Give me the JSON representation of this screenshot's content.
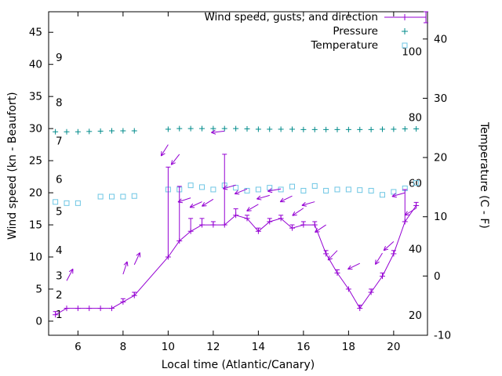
{
  "legend": {
    "wind": "Wind speed, gusts, and direction",
    "pressure": "Pressure",
    "temperature": "Temperature"
  },
  "axes": {
    "x_label": "Local time (Atlantic/Canary)",
    "y_left_label": "Wind speed (kn - Beaufort)",
    "y_right_label": "Temperature (C - F)",
    "x_ticks": [
      6,
      8,
      10,
      12,
      14,
      16,
      18,
      20
    ],
    "y_left_ticks": [
      0,
      5,
      10,
      15,
      20,
      25,
      30,
      35,
      40,
      45
    ],
    "y_right_ticks": [
      -10,
      0,
      10,
      20,
      30,
      40
    ],
    "beaufort_labels": [
      {
        "label": "1",
        "kn": 1
      },
      {
        "label": "2",
        "kn": 4
      },
      {
        "label": "3",
        "kn": 7
      },
      {
        "label": "4",
        "kn": 11
      },
      {
        "label": "5",
        "kn": 17
      },
      {
        "label": "6",
        "kn": 22
      },
      {
        "label": "7",
        "kn": 28
      },
      {
        "label": "8",
        "kn": 34
      },
      {
        "label": "9",
        "kn": 41
      }
    ],
    "fahrenheit_labels": [
      {
        "label": "20",
        "f": 20
      },
      {
        "label": "40",
        "f": 40
      },
      {
        "label": "60",
        "f": 60
      },
      {
        "label": "80",
        "f": 80
      },
      {
        "label": "100",
        "f": 100
      }
    ]
  },
  "colors": {
    "wind": "#9400d3",
    "pressure": "#008b8b",
    "temperature": "#6ec6e4",
    "axis": "#000000"
  },
  "chart_data": {
    "type": "line",
    "title": "",
    "xlabel": "Local time (Atlantic/Canary)",
    "ylabel_left": "Wind speed (kn - Beaufort)",
    "ylabel_right": "Temperature (C - F)",
    "xlim": [
      4.7,
      21.5
    ],
    "ylim_left_kn": [
      -2.2,
      48.2
    ],
    "ylim_right_C": [
      -10,
      44.6
    ],
    "x": [
      5,
      5.5,
      6,
      6.5,
      7,
      7.5,
      8,
      8.5,
      9,
      9.5,
      10,
      10.5,
      11,
      11.5,
      12,
      12.5,
      13,
      13.5,
      14,
      14.5,
      15,
      15.5,
      16,
      16.5,
      17,
      17.5,
      18,
      18.5,
      19,
      19.5,
      20,
      20.5,
      21
    ],
    "series": [
      {
        "name": "wind_speed_kn",
        "values": [
          1,
          2,
          2,
          2,
          2,
          2,
          3,
          4,
          null,
          null,
          10,
          12.5,
          14,
          15,
          15,
          15,
          16.5,
          16,
          14,
          15.5,
          16,
          14.5,
          15,
          15,
          10.5,
          7.5,
          5,
          2,
          4.5,
          7,
          10.5,
          15.5,
          18
        ]
      },
      {
        "name": "gusts_kn",
        "values": [
          1.5,
          2,
          2,
          2,
          2,
          2,
          3.5,
          4.5,
          null,
          null,
          24,
          21,
          16,
          16,
          15.5,
          26,
          17.5,
          16.5,
          14.5,
          16,
          16.5,
          15,
          15.5,
          15.5,
          11,
          8,
          5,
          2.5,
          5,
          7.5,
          11,
          20.5,
          18.5
        ]
      },
      {
        "name": "pressure_inHg",
        "values": [
          29.5,
          29.5,
          29.5,
          29.55,
          29.6,
          29.65,
          29.65,
          29.65,
          null,
          null,
          29.9,
          30,
          30,
          30,
          30,
          30,
          30,
          29.95,
          29.9,
          29.9,
          29.9,
          29.9,
          29.85,
          29.85,
          29.85,
          29.85,
          29.85,
          29.85,
          29.85,
          29.9,
          29.9,
          29.95,
          29.95
        ]
      },
      {
        "name": "temperature_C",
        "values": [
          12.5,
          12.3,
          12.3,
          null,
          13.4,
          13.4,
          13.4,
          13.5,
          null,
          null,
          14.6,
          14.6,
          15.3,
          15,
          14.6,
          15.3,
          14.9,
          14.4,
          14.6,
          14.9,
          14.6,
          15.1,
          14.4,
          15.2,
          14.4,
          14.6,
          14.6,
          14.5,
          14.4,
          13.7,
          14.2,
          14.8,
          15.7
        ]
      }
    ],
    "wind_arrows": [
      {
        "x": 5.5,
        "y": 6.3,
        "angle": 62
      },
      {
        "x": 8.0,
        "y": 7.3,
        "angle": 72
      },
      {
        "x": 8.5,
        "y": 8.8,
        "angle": 65
      },
      {
        "x": 10.0,
        "y": 27.5,
        "angle": 238
      },
      {
        "x": 10.5,
        "y": 26.0,
        "angle": 232
      },
      {
        "x": 11.0,
        "y": 19.2,
        "angle": 198
      },
      {
        "x": 11.5,
        "y": 18.6,
        "angle": 205
      },
      {
        "x": 12.0,
        "y": 19.0,
        "angle": 212
      },
      {
        "x": 12.5,
        "y": 29.6,
        "angle": 186
      },
      {
        "x": 13.0,
        "y": 21.2,
        "angle": 196
      },
      {
        "x": 13.5,
        "y": 20.6,
        "angle": 202
      },
      {
        "x": 14.0,
        "y": 18.2,
        "angle": 210
      },
      {
        "x": 14.5,
        "y": 19.6,
        "angle": 196
      },
      {
        "x": 15.0,
        "y": 20.6,
        "angle": 190
      },
      {
        "x": 15.5,
        "y": 19.5,
        "angle": 206
      },
      {
        "x": 16.0,
        "y": 17.6,
        "angle": 214
      },
      {
        "x": 16.5,
        "y": 18.6,
        "angle": 196
      },
      {
        "x": 17.0,
        "y": 15.0,
        "angle": 214
      },
      {
        "x": 17.5,
        "y": 11.0,
        "angle": 226
      },
      {
        "x": 18.5,
        "y": 9.0,
        "angle": 206
      },
      {
        "x": 19.5,
        "y": 10.6,
        "angle": 238
      },
      {
        "x": 20.0,
        "y": 12.4,
        "angle": 222
      },
      {
        "x": 20.5,
        "y": 20.0,
        "angle": 196
      },
      {
        "x": 21.0,
        "y": 17.6,
        "angle": 212
      }
    ]
  }
}
